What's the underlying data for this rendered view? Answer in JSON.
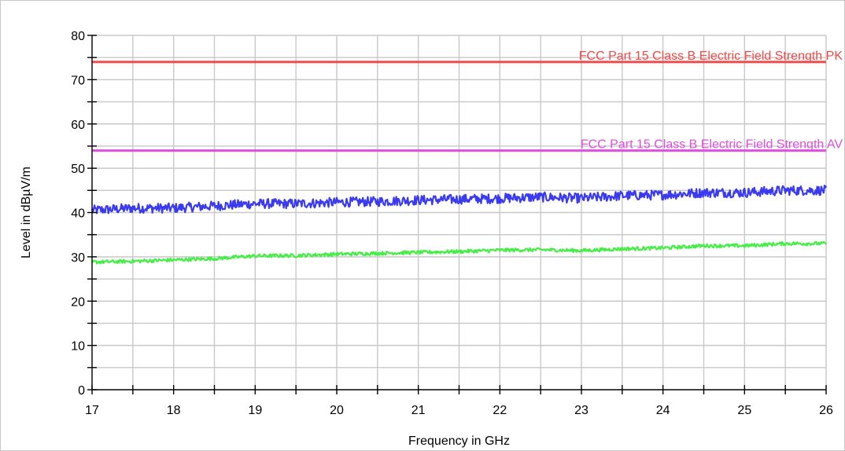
{
  "chart_data": {
    "type": "line",
    "xlabel": "Frequency in GHz",
    "ylabel": "Level in dBµV/m",
    "xlim": [
      17,
      26
    ],
    "ylim": [
      0,
      80
    ],
    "x_ticks": [
      "17",
      "18",
      "19",
      "20",
      "21",
      "22",
      "23",
      "24",
      "25",
      "26"
    ],
    "y_ticks": [
      "0",
      "10",
      "20",
      "30",
      "40",
      "50",
      "60",
      "70",
      "80"
    ],
    "grid": true,
    "limit_lines": [
      {
        "name": "FCC Part 15 Class B Electric Field Strength PK",
        "value": 74,
        "color": "#ef4a4a"
      },
      {
        "name": "FCC Part 15 Class B Electric Field Strength AV",
        "value": 54,
        "color": "#e04ee0"
      }
    ],
    "series": [
      {
        "color": "#3a3af0",
        "x": [
          17.0,
          17.5,
          18.0,
          18.5,
          19.0,
          19.5,
          20.0,
          20.5,
          21.0,
          21.5,
          22.0,
          22.5,
          23.0,
          23.5,
          24.0,
          24.5,
          25.0,
          25.5,
          26.0
        ],
        "values": [
          40.5,
          41.0,
          41.0,
          41.5,
          42.0,
          42.0,
          42.3,
          42.5,
          42.8,
          43.0,
          43.2,
          43.5,
          43.2,
          43.8,
          44.0,
          44.5,
          44.5,
          45.0,
          45.0
        ]
      },
      {
        "color": "#44ee44",
        "x": [
          17.0,
          17.5,
          18.0,
          18.5,
          19.0,
          19.5,
          20.0,
          20.5,
          21.0,
          21.5,
          22.0,
          22.5,
          23.0,
          23.5,
          24.0,
          24.5,
          25.0,
          25.5,
          26.0
        ],
        "values": [
          28.8,
          29.0,
          29.3,
          29.6,
          30.2,
          30.3,
          30.6,
          30.8,
          31.0,
          31.2,
          31.5,
          31.6,
          31.4,
          31.8,
          32.0,
          32.5,
          32.5,
          33.0,
          33.0
        ]
      }
    ]
  }
}
